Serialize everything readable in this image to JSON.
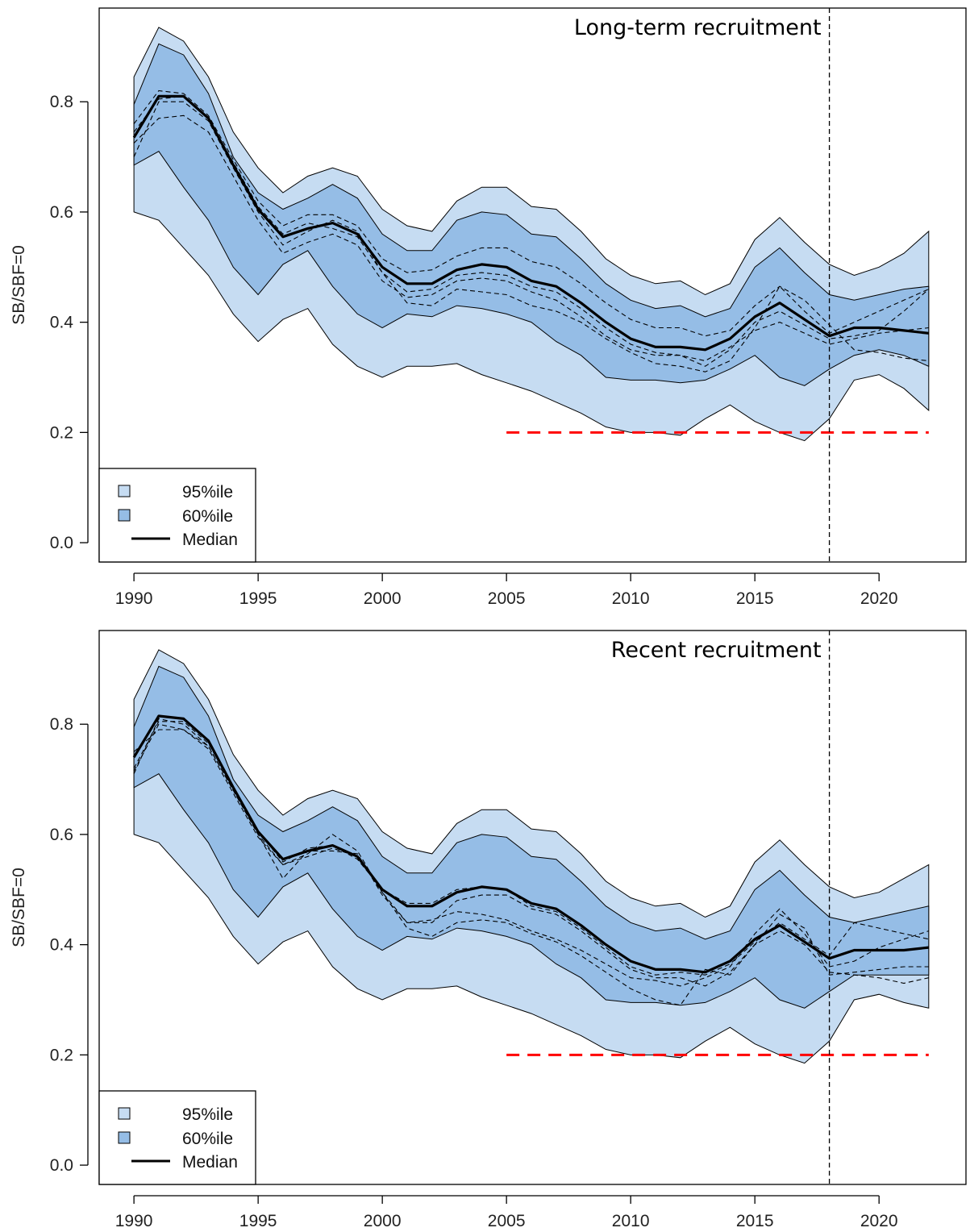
{
  "figure": {
    "ylabel": "SB/SBF=0",
    "colors": {
      "band95": "#c6dcf2",
      "band60": "#95bde6",
      "median": "#000000",
      "limit": "#ff0000",
      "frame": "#000000"
    }
  },
  "chart_data": [
    {
      "type": "area",
      "title": "Long-term recruitment",
      "xlabel": "",
      "ylabel": "SB/SBF=0",
      "xlim": [
        1988.6,
        2023.5
      ],
      "ylim": [
        -0.035,
        0.97
      ],
      "xticks": [
        1990,
        1995,
        2000,
        2005,
        2010,
        2015,
        2020
      ],
      "yticks": [
        0.0,
        0.2,
        0.4,
        0.6,
        0.8
      ],
      "ytick_labels": [
        "0.0",
        "0.2",
        "0.4",
        "0.6",
        "0.8"
      ],
      "legend": {
        "position": "bottom-left",
        "entries": [
          {
            "label": "95%ile",
            "kind": "band95"
          },
          {
            "label": "60%ile",
            "kind": "band60"
          },
          {
            "label": "Median",
            "kind": "median"
          }
        ]
      },
      "x": [
        1990,
        1991,
        1992,
        1993,
        1994,
        1995,
        1996,
        1997,
        1998,
        1999,
        2000,
        2001,
        2002,
        2003,
        2004,
        2005,
        2006,
        2007,
        2008,
        2009,
        2010,
        2011,
        2012,
        2013,
        2014,
        2015,
        2016,
        2017,
        2018,
        2019,
        2020,
        2021,
        2022
      ],
      "band95_upper": [
        0.845,
        0.935,
        0.91,
        0.845,
        0.745,
        0.68,
        0.635,
        0.665,
        0.68,
        0.665,
        0.605,
        0.575,
        0.565,
        0.62,
        0.645,
        0.645,
        0.61,
        0.605,
        0.565,
        0.515,
        0.485,
        0.47,
        0.475,
        0.45,
        0.47,
        0.55,
        0.59,
        0.545,
        0.505,
        0.485,
        0.5,
        0.525,
        0.565
      ],
      "band95_lower": [
        0.6,
        0.585,
        0.535,
        0.485,
        0.415,
        0.365,
        0.405,
        0.425,
        0.36,
        0.32,
        0.3,
        0.32,
        0.32,
        0.325,
        0.305,
        0.29,
        0.275,
        0.255,
        0.235,
        0.21,
        0.2,
        0.2,
        0.195,
        0.225,
        0.25,
        0.22,
        0.2,
        0.185,
        0.225,
        0.295,
        0.305,
        0.28,
        0.24
      ],
      "band60_upper": [
        0.795,
        0.905,
        0.885,
        0.815,
        0.7,
        0.635,
        0.605,
        0.625,
        0.65,
        0.625,
        0.56,
        0.53,
        0.53,
        0.585,
        0.6,
        0.595,
        0.56,
        0.555,
        0.515,
        0.47,
        0.44,
        0.425,
        0.43,
        0.41,
        0.425,
        0.5,
        0.535,
        0.49,
        0.45,
        0.44,
        0.45,
        0.46,
        0.465
      ],
      "band60_lower": [
        0.685,
        0.71,
        0.645,
        0.585,
        0.5,
        0.45,
        0.505,
        0.53,
        0.465,
        0.415,
        0.39,
        0.415,
        0.41,
        0.43,
        0.425,
        0.415,
        0.4,
        0.365,
        0.34,
        0.3,
        0.295,
        0.295,
        0.29,
        0.295,
        0.315,
        0.34,
        0.3,
        0.285,
        0.315,
        0.34,
        0.35,
        0.34,
        0.32
      ],
      "median": [
        0.735,
        0.81,
        0.81,
        0.77,
        0.685,
        0.605,
        0.555,
        0.57,
        0.58,
        0.56,
        0.5,
        0.47,
        0.47,
        0.495,
        0.505,
        0.5,
        0.475,
        0.465,
        0.435,
        0.4,
        0.37,
        0.355,
        0.355,
        0.35,
        0.37,
        0.41,
        0.435,
        0.405,
        0.375,
        0.39,
        0.39,
        0.385,
        0.38
      ],
      "traces": [
        [
          0.76,
          0.82,
          0.815,
          0.775,
          0.695,
          0.62,
          0.575,
          0.595,
          0.595,
          0.575,
          0.515,
          0.49,
          0.495,
          0.52,
          0.535,
          0.535,
          0.51,
          0.5,
          0.47,
          0.435,
          0.405,
          0.39,
          0.39,
          0.375,
          0.385,
          0.43,
          0.465,
          0.44,
          0.395,
          0.35,
          0.345,
          0.335,
          0.33
        ],
        [
          0.725,
          0.77,
          0.775,
          0.745,
          0.665,
          0.585,
          0.525,
          0.545,
          0.56,
          0.54,
          0.475,
          0.445,
          0.45,
          0.475,
          0.48,
          0.475,
          0.455,
          0.44,
          0.41,
          0.375,
          0.35,
          0.34,
          0.34,
          0.32,
          0.35,
          0.4,
          0.42,
          0.395,
          0.37,
          0.375,
          0.385,
          0.42,
          0.46
        ],
        [
          0.7,
          0.8,
          0.8,
          0.765,
          0.68,
          0.6,
          0.54,
          0.565,
          0.585,
          0.565,
          0.49,
          0.455,
          0.46,
          0.485,
          0.49,
          0.485,
          0.465,
          0.455,
          0.425,
          0.39,
          0.36,
          0.345,
          0.34,
          0.33,
          0.355,
          0.385,
          0.4,
          0.38,
          0.36,
          0.37,
          0.38,
          0.385,
          0.39
        ],
        [
          0.745,
          0.805,
          0.81,
          0.77,
          0.69,
          0.61,
          0.56,
          0.58,
          0.57,
          0.555,
          0.49,
          0.435,
          0.43,
          0.46,
          0.455,
          0.45,
          0.43,
          0.42,
          0.4,
          0.37,
          0.345,
          0.325,
          0.32,
          0.31,
          0.33,
          0.39,
          0.465,
          0.42,
          0.38,
          0.4,
          0.42,
          0.44,
          0.46
        ]
      ],
      "limit_line": {
        "x": [
          2005,
          2022
        ],
        "y": 0.2
      },
      "vline_x": 2018
    },
    {
      "type": "area",
      "title": "Recent recruitment",
      "xlabel": "",
      "ylabel": "SB/SBF=0",
      "xlim": [
        1988.6,
        2023.5
      ],
      "ylim": [
        -0.035,
        0.97
      ],
      "xticks": [
        1990,
        1995,
        2000,
        2005,
        2010,
        2015,
        2020
      ],
      "yticks": [
        0.0,
        0.2,
        0.4,
        0.6,
        0.8
      ],
      "ytick_labels": [
        "0.0",
        "0.2",
        "0.4",
        "0.6",
        "0.8"
      ],
      "legend": {
        "position": "bottom-left",
        "entries": [
          {
            "label": "95%ile",
            "kind": "band95"
          },
          {
            "label": "60%ile",
            "kind": "band60"
          },
          {
            "label": "Median",
            "kind": "median"
          }
        ]
      },
      "x": [
        1990,
        1991,
        1992,
        1993,
        1994,
        1995,
        1996,
        1997,
        1998,
        1999,
        2000,
        2001,
        2002,
        2003,
        2004,
        2005,
        2006,
        2007,
        2008,
        2009,
        2010,
        2011,
        2012,
        2013,
        2014,
        2015,
        2016,
        2017,
        2018,
        2019,
        2020,
        2021,
        2022
      ],
      "band95_upper": [
        0.845,
        0.935,
        0.91,
        0.845,
        0.745,
        0.68,
        0.635,
        0.665,
        0.68,
        0.665,
        0.605,
        0.575,
        0.565,
        0.62,
        0.645,
        0.645,
        0.61,
        0.605,
        0.565,
        0.515,
        0.485,
        0.47,
        0.475,
        0.45,
        0.47,
        0.55,
        0.59,
        0.545,
        0.505,
        0.485,
        0.495,
        0.52,
        0.545
      ],
      "band95_lower": [
        0.6,
        0.585,
        0.535,
        0.485,
        0.415,
        0.365,
        0.405,
        0.425,
        0.36,
        0.32,
        0.3,
        0.32,
        0.32,
        0.325,
        0.305,
        0.29,
        0.275,
        0.255,
        0.235,
        0.21,
        0.2,
        0.2,
        0.195,
        0.225,
        0.25,
        0.22,
        0.2,
        0.185,
        0.225,
        0.3,
        0.31,
        0.295,
        0.285
      ],
      "band60_upper": [
        0.795,
        0.905,
        0.885,
        0.815,
        0.7,
        0.635,
        0.605,
        0.625,
        0.65,
        0.625,
        0.56,
        0.53,
        0.53,
        0.585,
        0.6,
        0.595,
        0.56,
        0.555,
        0.515,
        0.47,
        0.44,
        0.425,
        0.43,
        0.41,
        0.425,
        0.5,
        0.535,
        0.49,
        0.45,
        0.44,
        0.45,
        0.46,
        0.47
      ],
      "band60_lower": [
        0.685,
        0.71,
        0.645,
        0.585,
        0.5,
        0.45,
        0.505,
        0.53,
        0.465,
        0.415,
        0.39,
        0.415,
        0.41,
        0.43,
        0.425,
        0.415,
        0.4,
        0.365,
        0.34,
        0.3,
        0.295,
        0.295,
        0.29,
        0.295,
        0.315,
        0.34,
        0.3,
        0.285,
        0.315,
        0.345,
        0.345,
        0.345,
        0.345
      ],
      "median": [
        0.74,
        0.815,
        0.81,
        0.77,
        0.685,
        0.605,
        0.555,
        0.57,
        0.58,
        0.56,
        0.5,
        0.47,
        0.47,
        0.495,
        0.505,
        0.5,
        0.475,
        0.465,
        0.435,
        0.4,
        0.37,
        0.355,
        0.355,
        0.35,
        0.37,
        0.41,
        0.435,
        0.405,
        0.375,
        0.39,
        0.39,
        0.39,
        0.395
      ],
      "traces": [
        [
          0.715,
          0.8,
          0.79,
          0.755,
          0.675,
          0.595,
          0.545,
          0.565,
          0.6,
          0.57,
          0.495,
          0.44,
          0.445,
          0.46,
          0.455,
          0.445,
          0.425,
          0.41,
          0.39,
          0.365,
          0.34,
          0.335,
          0.325,
          0.34,
          0.36,
          0.42,
          0.465,
          0.42,
          0.36,
          0.37,
          0.395,
          0.41,
          0.425
        ],
        [
          0.75,
          0.79,
          0.79,
          0.76,
          0.68,
          0.6,
          0.52,
          0.57,
          0.57,
          0.565,
          0.49,
          0.44,
          0.44,
          0.48,
          0.49,
          0.49,
          0.465,
          0.455,
          0.425,
          0.39,
          0.355,
          0.34,
          0.34,
          0.325,
          0.35,
          0.4,
          0.425,
          0.4,
          0.35,
          0.345,
          0.34,
          0.33,
          0.34
        ],
        [
          0.72,
          0.805,
          0.805,
          0.765,
          0.685,
          0.605,
          0.55,
          0.575,
          0.58,
          0.555,
          0.5,
          0.475,
          0.475,
          0.5,
          0.505,
          0.5,
          0.47,
          0.46,
          0.43,
          0.395,
          0.36,
          0.345,
          0.35,
          0.345,
          0.365,
          0.405,
          0.44,
          0.41,
          0.38,
          0.44,
          0.43,
          0.42,
          0.41
        ],
        [
          0.71,
          0.81,
          0.8,
          0.76,
          0.68,
          0.6,
          0.545,
          0.56,
          0.575,
          0.56,
          0.495,
          0.43,
          0.415,
          0.44,
          0.445,
          0.44,
          0.42,
          0.405,
          0.38,
          0.35,
          0.32,
          0.3,
          0.29,
          0.355,
          0.345,
          0.4,
          0.455,
          0.43,
          0.345,
          0.35,
          0.355,
          0.36,
          0.36
        ]
      ],
      "limit_line": {
        "x": [
          2005,
          2022
        ],
        "y": 0.2
      },
      "vline_x": 2018
    }
  ]
}
